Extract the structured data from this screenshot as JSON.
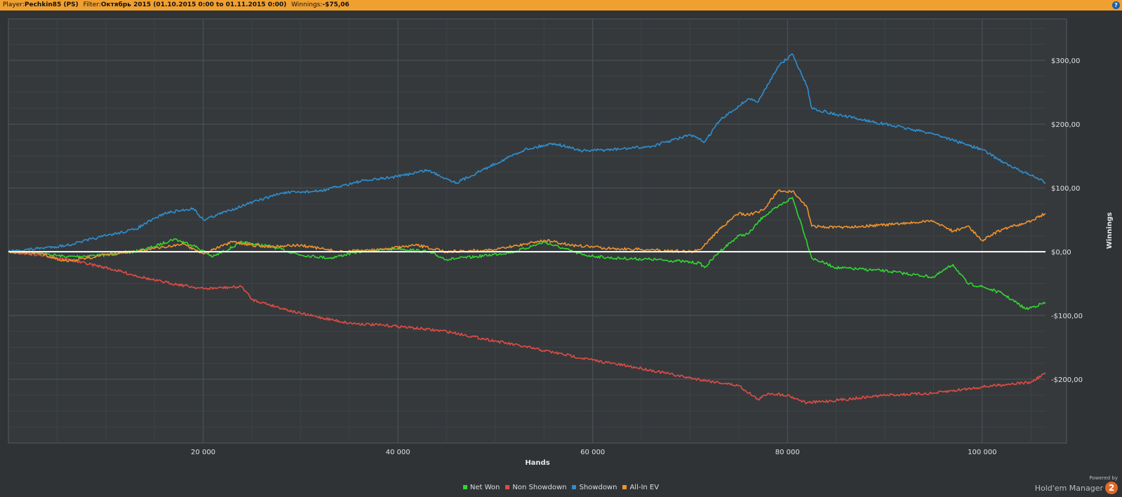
{
  "header": {
    "player_label": "Player:",
    "player": "Pechkin85 (PS)",
    "filter_label": "Filter:",
    "filter": "Октябрь 2015 (01.10.2015 0:00 to 01.11.2015 0:00)",
    "winnings_label": "Winnings:",
    "winnings": "-$75,06",
    "help": "?"
  },
  "powered": {
    "line1": "Powered by",
    "line2": "Hold'em Manager",
    "logo": "2"
  },
  "chart_data": {
    "type": "line",
    "xlabel": "Hands",
    "ylabel": "Winnings",
    "xlim": [
      0,
      106500
    ],
    "ylim": [
      -300,
      365
    ],
    "x_ticks": [
      20000,
      40000,
      60000,
      80000,
      100000
    ],
    "x_tick_labels": [
      "20 000",
      "40 000",
      "60 000",
      "80 000",
      "100 000"
    ],
    "y_ticks": [
      300,
      200,
      100,
      0,
      -100,
      -200
    ],
    "y_tick_labels": [
      "$300,00",
      "$200,00",
      "$100,00",
      "$0,00",
      "-$100,00",
      "-$200,00"
    ],
    "grid": true,
    "legend_position": "bottom-center",
    "series": [
      {
        "name": "Net Won",
        "color": "#2fd82f",
        "x": [
          0,
          3000,
          6000,
          10000,
          13000,
          15000,
          17000,
          19000,
          21000,
          24000,
          27000,
          30000,
          33000,
          36000,
          40000,
          43000,
          45000,
          48000,
          52000,
          55000,
          57000,
          59000,
          62000,
          66000,
          69000,
          71000,
          71500,
          73000,
          75000,
          76000,
          77500,
          79000,
          80500,
          81500,
          82500,
          85000,
          90000,
          95000,
          97000,
          98500,
          100000,
          102000,
          104500,
          106500
        ],
        "y": [
          0,
          -2,
          -8,
          -5,
          0,
          8,
          20,
          10,
          -8,
          15,
          8,
          -5,
          -10,
          0,
          5,
          0,
          -12,
          -8,
          0,
          15,
          5,
          -5,
          -10,
          -12,
          -15,
          -18,
          -25,
          0,
          25,
          28,
          55,
          70,
          85,
          40,
          -10,
          -25,
          -30,
          -40,
          -20,
          -50,
          -55,
          -65,
          -90,
          -80
        ]
      },
      {
        "name": "Non Showdown",
        "color": "#e14c44",
        "x": [
          0,
          3000,
          6000,
          10000,
          15000,
          20000,
          24000,
          25000,
          30000,
          35000,
          40000,
          45000,
          50000,
          55000,
          60000,
          65000,
          70000,
          75000,
          77000,
          78000,
          80000,
          82000,
          85000,
          90000,
          95000,
          100000,
          103000,
          105000,
          106500
        ],
        "y": [
          0,
          -5,
          -12,
          -25,
          -45,
          -58,
          -55,
          -75,
          -97,
          -112,
          -117,
          -125,
          -140,
          -155,
          -170,
          -183,
          -198,
          -210,
          -232,
          -222,
          -225,
          -237,
          -233,
          -225,
          -222,
          -212,
          -207,
          -205,
          -190
        ]
      },
      {
        "name": "Showdown",
        "color": "#2e8fd0",
        "x": [
          0,
          3000,
          6000,
          10000,
          13000,
          16000,
          19000,
          20000,
          24000,
          28000,
          32000,
          36000,
          40000,
          43000,
          46000,
          50000,
          53000,
          56000,
          59000,
          62000,
          66000,
          70000,
          71500,
          73000,
          76000,
          77000,
          79000,
          80500,
          82000,
          82500,
          85000,
          90000,
          95000,
          98000,
          100000,
          103000,
          105000,
          106500
        ],
        "y": [
          0,
          5,
          10,
          25,
          35,
          60,
          68,
          50,
          72,
          92,
          95,
          110,
          118,
          128,
          108,
          138,
          160,
          170,
          158,
          160,
          165,
          183,
          172,
          205,
          240,
          235,
          290,
          310,
          260,
          225,
          215,
          200,
          185,
          170,
          160,
          133,
          120,
          108
        ]
      },
      {
        "name": "All-In EV",
        "color": "#f0922e",
        "x": [
          0,
          3000,
          6000,
          10000,
          15000,
          18000,
          20000,
          23000,
          26000,
          30000,
          34000,
          38000,
          42000,
          45000,
          50000,
          55000,
          58000,
          62000,
          66000,
          70000,
          71000,
          73000,
          75000,
          76000,
          77500,
          79000,
          80500,
          82000,
          82500,
          85000,
          90000,
          95000,
          97000,
          98500,
          100000,
          102000,
          104500,
          106500
        ],
        "y": [
          0,
          -2,
          -15,
          -5,
          5,
          12,
          -3,
          15,
          8,
          10,
          0,
          3,
          10,
          0,
          3,
          18,
          10,
          5,
          3,
          0,
          3,
          35,
          60,
          58,
          65,
          95,
          95,
          70,
          40,
          38,
          42,
          48,
          32,
          40,
          18,
          35,
          45,
          60
        ]
      }
    ]
  }
}
